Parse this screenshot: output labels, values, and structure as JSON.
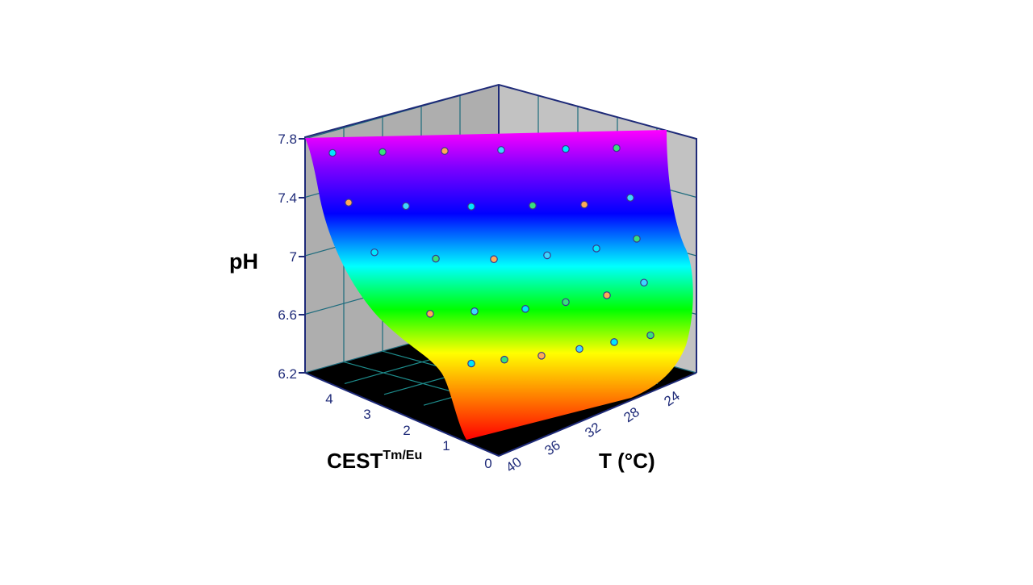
{
  "chart_data": {
    "type": "surface3d",
    "zlabel": "pH",
    "xlabel_main": "CEST",
    "xlabel_sup": "Tm/Eu",
    "ylabel": "T (°C)",
    "z_ticks": [
      "7.8",
      "7.4",
      "7",
      "6.6",
      "6.2"
    ],
    "cest_ticks": [
      "4",
      "3",
      "2",
      "1",
      "0"
    ],
    "t_ticks": [
      "24",
      "28",
      "32",
      "36",
      "40"
    ],
    "zlim": [
      6.2,
      7.8
    ],
    "cest_range": [
      0,
      4.6
    ],
    "t_range": [
      22,
      40
    ],
    "grid": true,
    "points": [
      {
        "T": 24,
        "pH": 7.72
      },
      {
        "T": 26,
        "pH": 7.72
      },
      {
        "T": 28,
        "pH": 7.72
      },
      {
        "T": 32,
        "pH": 7.72
      },
      {
        "T": 36,
        "pH": 7.72
      },
      {
        "T": 40,
        "pH": 7.72
      },
      {
        "T": 24,
        "pH": 7.38
      },
      {
        "T": 26,
        "pH": 7.35
      },
      {
        "T": 28,
        "pH": 7.34
      },
      {
        "T": 32,
        "pH": 7.34
      },
      {
        "T": 36,
        "pH": 7.34
      },
      {
        "T": 40,
        "pH": 7.38
      },
      {
        "T": 24,
        "pH": 7.04
      },
      {
        "T": 26,
        "pH": 6.99
      },
      {
        "T": 28,
        "pH": 6.98
      },
      {
        "T": 32,
        "pH": 7.0
      },
      {
        "T": 36,
        "pH": 7.04
      },
      {
        "T": 40,
        "pH": 7.1
      },
      {
        "T": 24,
        "pH": 6.62
      },
      {
        "T": 26,
        "pH": 6.63
      },
      {
        "T": 28,
        "pH": 6.64
      },
      {
        "T": 32,
        "pH": 6.68
      },
      {
        "T": 36,
        "pH": 6.72
      },
      {
        "T": 40,
        "pH": 6.8
      },
      {
        "T": 24,
        "pH": 6.28
      },
      {
        "T": 26,
        "pH": 6.3
      },
      {
        "T": 28,
        "pH": 6.32
      },
      {
        "T": 32,
        "pH": 6.36
      },
      {
        "T": 36,
        "pH": 6.4
      },
      {
        "T": 40,
        "pH": 6.44
      }
    ]
  }
}
